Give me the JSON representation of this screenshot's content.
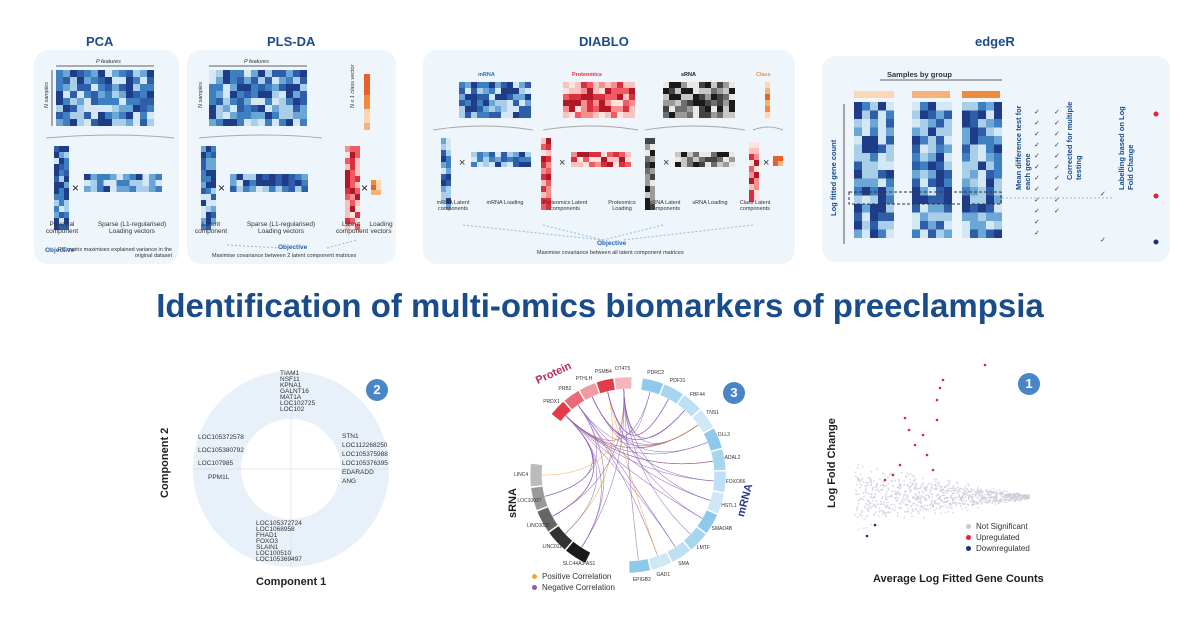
{
  "main_title": "Identification of multi-omics biomarkers of preeclampsia",
  "colors": {
    "title_blue": "#1a4c8b",
    "panel_bg": "#eef5fb",
    "heat_dark": "#1f3c88",
    "heat_mid": "#3d7fc1",
    "heat_light": "#a9cfe8",
    "red": "#e23b4a",
    "orange": "#f08a3c",
    "objective_blue": "#2563b8",
    "badge_blue": "#4a86c6"
  },
  "pca": {
    "title": "PCA",
    "features": "P features",
    "samples": "N samples",
    "principal_label": "Principal component",
    "loading_label": "Sparse (L1-regularised) Loading vectors",
    "objective_word": "Objective",
    "objective_text": "PC matrix maximises explained variance in the original dataset"
  },
  "plsda": {
    "title": "PLS-DA",
    "features": "P features",
    "samples": "N samples",
    "class_vector": "N x 1 class vector",
    "latent_label": "Latent component",
    "loading_label": "Sparse (L1-regularised) Loading vectors",
    "latent_label2": "Latent component",
    "loading_label2": "Loading vectors",
    "objective_word": "Objective",
    "objective_text": "Maximise covariance between 2 latent component matrices"
  },
  "diablo": {
    "title": "DIABLO",
    "blocks": [
      "mRNA",
      "Proteomics",
      "sRNA",
      "Class"
    ],
    "labels": [
      "mRNA Latent components",
      "mRNA Loading",
      "Proteomics Latent components",
      "Proteomics Loading",
      "sRNA Latent components",
      "sRNA Loading",
      "Class Latent components"
    ],
    "objective_word": "Objective",
    "objective_text": "Maximise covariance between all latent component matrices"
  },
  "edger": {
    "title": "edgeR",
    "samples_by_group": "Samples by group",
    "y_label": "Log fitted gene count",
    "step1": "Mean difference test for each gene",
    "step2": "Corrected for multiple testing",
    "step3": "Labelling based on Log Fold Change"
  },
  "plot2": {
    "badge": "2",
    "xlabel": "Component  1",
    "ylabel": "Component  2",
    "genes_top": [
      "TIAM1",
      "NSF11",
      "KPNA1",
      "GALNT16",
      "MAT1A",
      "LOC102725",
      "LOC102"
    ],
    "genes_left": [
      "LOC105372578",
      "LOC105380792",
      "LOC107985"
    ],
    "genes_left2": [
      "PPM1L"
    ],
    "genes_right": [
      "STN1",
      "LOC112268250",
      "LOC105375988",
      "LOC105376395",
      "EDARADD",
      "ANG"
    ],
    "genes_bottom": [
      "LOC105372724",
      "LOC1068958",
      "FHAD1",
      "FOXO3",
      "SLAIN1",
      "LOC100510",
      "LOC105369497"
    ]
  },
  "plot3": {
    "badge": "3",
    "sector_protein": "Protein",
    "sector_srna": "sRNA",
    "sector_mrna": "mRNA",
    "legend": [
      "Positive Correlation",
      "Negative Correlation"
    ],
    "protein_labels": [
      "PRDX1",
      "PRB2",
      "PTHLH",
      "PSMB4",
      "OT4T5"
    ],
    "mrna_labels": [
      "PDRC2",
      "PDF31",
      "FBF44",
      "TNS1",
      "DLL3",
      "ADAL2",
      "FOXO66",
      "HSTL1",
      "SMAD4B",
      "LMTF",
      "SMA",
      "GAD1",
      "EPIGB2"
    ],
    "srna_labels": [
      "SLC44A3-AS1",
      "LINC011",
      "LINC0025",
      "LOC10037",
      "LINC4"
    ]
  },
  "plot1": {
    "badge": "1",
    "xlabel": "Average Log Fitted Gene Counts",
    "ylabel": "Log Fold Change",
    "legend": [
      "Not Significant",
      "Upregulated",
      "Downregulated"
    ],
    "legend_colors": [
      "#c7c9d6",
      "#e0243a",
      "#1c2f7d"
    ]
  }
}
